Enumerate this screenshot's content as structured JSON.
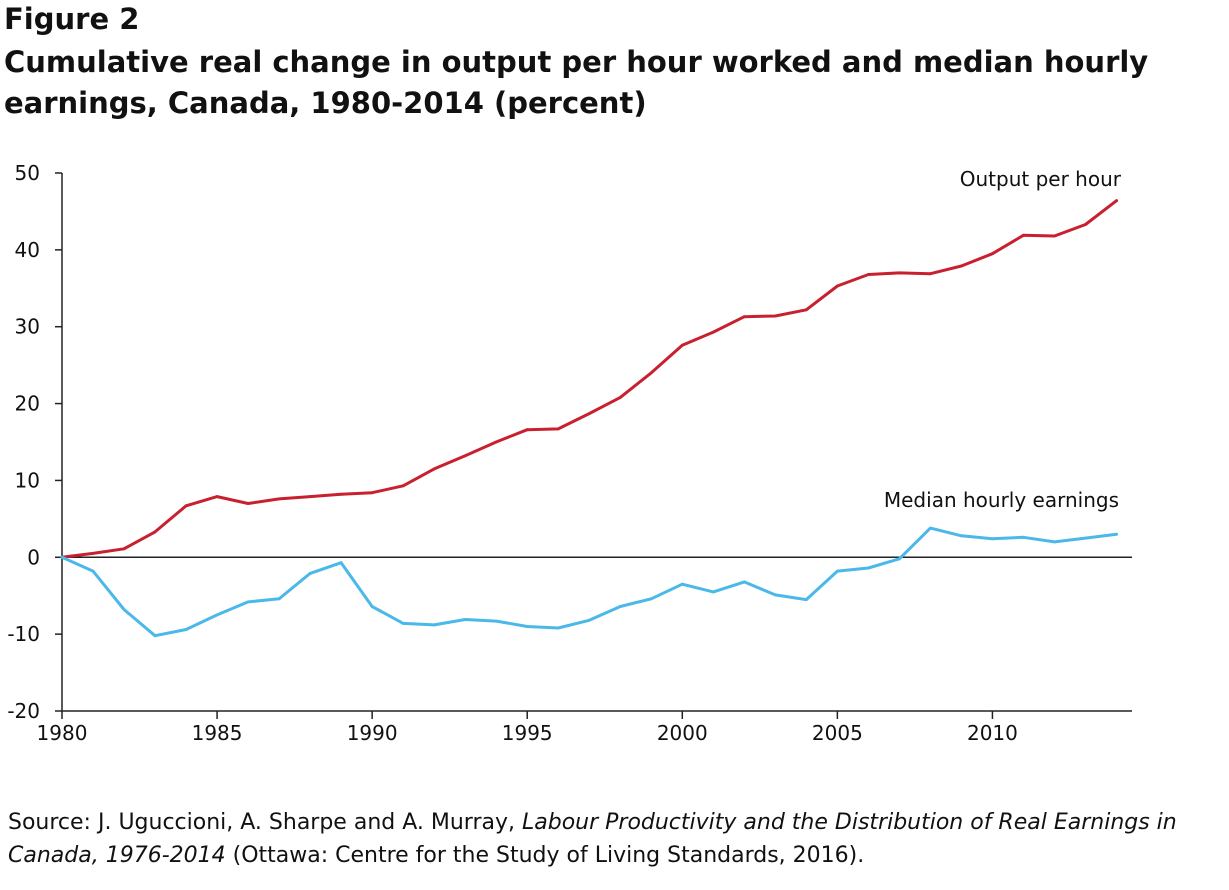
{
  "figure_label": "Figure 2",
  "title": "Cumulative real change in output per hour worked and median hourly earnings, Canada, 1980-2014 (percent)",
  "source": {
    "prefix": "Source: J. Uguccioni, A. Sharpe and A. Murray, ",
    "book": "Labour Productivity and the Distribution of Real Earnings in Canada, 1976-2014",
    "suffix": " (Ottawa: Centre for the Study of Living Standards, 2016)."
  },
  "chart_data": {
    "type": "line",
    "title": "Cumulative real change in output per hour worked and median hourly earnings, Canada, 1980-2014 (percent)",
    "xlabel": "",
    "ylabel": "",
    "xlim": [
      1980,
      2014.5
    ],
    "ylim": [
      -20,
      50
    ],
    "xticks": [
      1980,
      1985,
      1990,
      1995,
      2000,
      2005,
      2010
    ],
    "yticks": [
      50,
      40,
      30,
      20,
      10,
      0,
      -10,
      -20
    ],
    "grid": false,
    "legend": "direct labels",
    "x": [
      1980,
      1981,
      1982,
      1983,
      1984,
      1985,
      1986,
      1987,
      1988,
      1989,
      1990,
      1991,
      1992,
      1993,
      1994,
      1995,
      1996,
      1997,
      1998,
      1999,
      2000,
      2001,
      2002,
      2003,
      2004,
      2005,
      2006,
      2007,
      2008,
      2009,
      2010,
      2011,
      2012,
      2013,
      2014
    ],
    "series": [
      {
        "name": "Output per hour",
        "color": "#c8202f",
        "values": [
          0,
          0.5,
          1.1,
          3.3,
          6.7,
          7.9,
          7.0,
          7.6,
          7.9,
          8.2,
          8.4,
          9.3,
          11.5,
          13.2,
          15.0,
          16.6,
          16.7,
          18.7,
          20.8,
          24.0,
          27.6,
          29.3,
          31.3,
          31.4,
          32.2,
          35.3,
          36.8,
          37.0,
          36.9,
          37.9,
          39.5,
          41.9,
          41.8,
          43.3,
          46.4
        ]
      },
      {
        "name": "Median hourly earnings",
        "color": "#4ab8e8",
        "values": [
          0,
          -1.8,
          -6.8,
          -10.2,
          -9.4,
          -7.5,
          -5.8,
          -5.4,
          -2.1,
          -0.7,
          -6.4,
          -8.6,
          -8.8,
          -8.1,
          -8.3,
          -9.0,
          -9.2,
          -8.2,
          -6.4,
          -5.4,
          -3.5,
          -4.5,
          -3.2,
          -4.9,
          -5.5,
          -1.8,
          -1.4,
          -0.2,
          3.8,
          2.8,
          2.4,
          2.6,
          2.0,
          2.5,
          3.0
        ]
      }
    ]
  }
}
